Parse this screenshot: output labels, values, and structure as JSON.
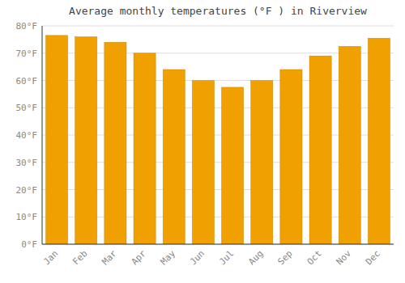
{
  "chart_data": {
    "type": "bar",
    "title": "Average monthly temperatures (°F ) in Riverview",
    "categories": [
      "Jan",
      "Feb",
      "Mar",
      "Apr",
      "May",
      "Jun",
      "Jul",
      "Aug",
      "Sep",
      "Oct",
      "Nov",
      "Dec"
    ],
    "values": [
      76.5,
      76.0,
      74.0,
      70.0,
      64.0,
      60.0,
      57.5,
      60.0,
      64.0,
      69.0,
      72.5,
      75.5
    ],
    "color": "#F0A000",
    "ylim": [
      0,
      80
    ],
    "yticks": [
      {
        "value": 0,
        "label": "0°F"
      },
      {
        "value": 10,
        "label": "10°F"
      },
      {
        "value": 20,
        "label": "20°F"
      },
      {
        "value": 30,
        "label": "30°F"
      },
      {
        "value": 40,
        "label": "40°F"
      },
      {
        "value": 50,
        "label": "50°F"
      },
      {
        "value": 60,
        "label": "60°F"
      },
      {
        "value": 70,
        "label": "70°F"
      },
      {
        "value": 80,
        "label": "80°F"
      }
    ],
    "grid": true
  }
}
